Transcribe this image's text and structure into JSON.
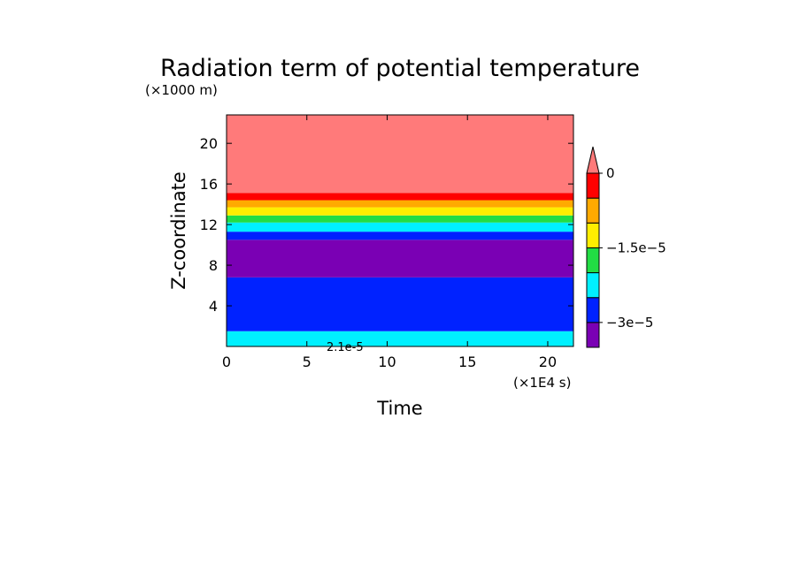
{
  "chart_data": {
    "type": "heatmap",
    "title": "Radiation term of potential temperature",
    "xlabel": "Time",
    "ylabel": "Z-coordinate",
    "x_scale_label": "(×1E4 s)",
    "y_scale_label": "(×1000 m)",
    "xlim": [
      0,
      21.6
    ],
    "ylim": [
      0,
      22.8
    ],
    "x_ticks": [
      0,
      5,
      10,
      15,
      20
    ],
    "x_tick_labels": [
      "0",
      "5",
      "10",
      "15",
      "20"
    ],
    "y_ticks": [
      4,
      8,
      12,
      16,
      20
    ],
    "y_tick_labels": [
      "4",
      "8",
      "12",
      "16",
      "20"
    ],
    "stray_label": "2.1e-5",
    "bands": [
      {
        "z0": 0.0,
        "z1": 1.5,
        "color": "#00f0ff"
      },
      {
        "z0": 1.5,
        "z1": 6.8,
        "color": "#0022ff"
      },
      {
        "z0": 6.8,
        "z1": 10.5,
        "color": "#7a00b4"
      },
      {
        "z0": 10.5,
        "z1": 11.3,
        "color": "#0022ff"
      },
      {
        "z0": 11.3,
        "z1": 12.2,
        "color": "#00f0ff"
      },
      {
        "z0": 12.2,
        "z1": 12.9,
        "color": "#22dd44"
      },
      {
        "z0": 12.9,
        "z1": 13.7,
        "color": "#ffee00"
      },
      {
        "z0": 13.7,
        "z1": 14.4,
        "color": "#ffaa00"
      },
      {
        "z0": 14.4,
        "z1": 15.1,
        "color": "#ff0000"
      },
      {
        "z0": 15.1,
        "z1": 22.8,
        "color": "#ff7a7a"
      }
    ],
    "colorbar": {
      "colors_bottom_to_top": [
        "#7a00b4",
        "#0022ff",
        "#00f0ff",
        "#22dd44",
        "#ffee00",
        "#ffaa00",
        "#ff0000"
      ],
      "over_color": "#ff7a7a",
      "tick_labels": [
        "0",
        "−1.5e−5",
        "−3e−5"
      ],
      "tick_values": [
        0,
        -1.5e-05,
        -3e-05
      ],
      "level_min": -3.5e-05,
      "level_step": 5e-06
    }
  }
}
